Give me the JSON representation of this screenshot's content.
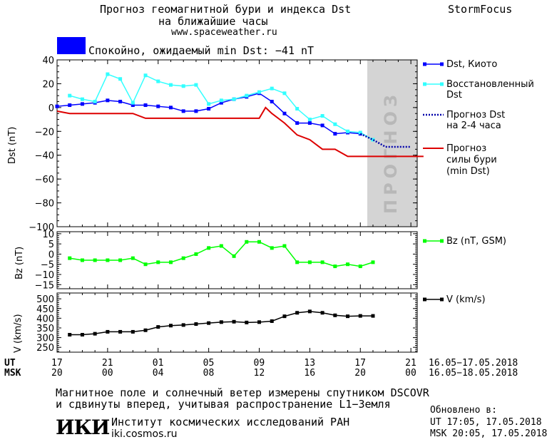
{
  "header": {
    "title_line1": "Прогноз геомагнитной бури и индекса Dst",
    "title_line2": "на ближайшие часы",
    "url": "www.spaceweather.ru",
    "brand": "StormFocus",
    "status_text": "Спокойно, ожидаемый min Dst: −41 nT",
    "status_color": "#0000ff"
  },
  "chart_data": [
    {
      "type": "line",
      "ylabel": "Dst (nT)",
      "ylim": [
        -100,
        40
      ],
      "yticks": [
        "40",
        "20",
        "0",
        "−20",
        "−40",
        "−60",
        "−80",
        "−100"
      ],
      "forecast_label": "ПРОГНОЗ",
      "series": [
        {
          "name": "Dst, Киото",
          "color": "#0000ff",
          "x": [
            17,
            18,
            19,
            20,
            21,
            22,
            23,
            24,
            25,
            26,
            27,
            28,
            29,
            30,
            31,
            32,
            33,
            34,
            35,
            36,
            37,
            38,
            39,
            40,
            41
          ],
          "y": [
            1,
            2,
            3,
            4,
            6,
            5,
            2,
            2,
            1,
            0,
            -3,
            -3,
            -1,
            4,
            7,
            9,
            12,
            5,
            -5,
            -13,
            -13,
            -15,
            -22,
            -21,
            -22
          ]
        },
        {
          "name": "Восстановленный Dst",
          "color": "#33ffff",
          "x": [
            18,
            19,
            20,
            21,
            22,
            23,
            24,
            25,
            26,
            27,
            28,
            29,
            30,
            31,
            32,
            33,
            34,
            35,
            36,
            37,
            38,
            39,
            40,
            41,
            42
          ],
          "y": [
            10,
            7,
            5,
            28,
            24,
            4,
            27,
            22,
            19,
            18,
            19,
            3,
            6,
            7,
            10,
            13,
            16,
            12,
            -1,
            -10,
            -7,
            -14,
            -20,
            -21,
            -27
          ]
        },
        {
          "name": "Прогноз Dst на 2-4 часа",
          "color": "#0000aa",
          "x": [
            41,
            42,
            43,
            44,
            45
          ],
          "y": [
            -22,
            -27,
            -33,
            -33,
            -33
          ]
        },
        {
          "name": "Прогноз силы бури (min Dst)",
          "color": "#dd0000",
          "x": [
            17,
            18,
            19,
            20,
            21,
            22,
            23,
            24,
            25,
            26,
            27,
            28,
            29,
            30,
            31,
            32,
            33,
            33.5,
            34,
            35,
            36,
            37,
            38,
            39,
            40,
            41,
            42,
            43,
            44,
            45,
            46
          ],
          "y": [
            -3,
            -5,
            -5,
            -5,
            -5,
            -5,
            -5,
            -9,
            -9,
            -9,
            -9,
            -9,
            -9,
            -9,
            -9,
            -9,
            -9,
            0,
            -5,
            -13,
            -23,
            -27,
            -35,
            -35,
            -41,
            -41,
            -41,
            -41,
            -41,
            -41,
            -41
          ]
        }
      ]
    },
    {
      "type": "line",
      "ylabel": "Bz (nT)",
      "ylim": [
        -17,
        11
      ],
      "yticks": [
        "10",
        "5",
        "0",
        "−5",
        "−10",
        "−15"
      ],
      "series": [
        {
          "name": "Bz (nT, GSM)",
          "color": "#00ff00",
          "x": [
            18,
            19,
            20,
            21,
            22,
            23,
            24,
            25,
            26,
            27,
            28,
            29,
            30,
            31,
            32,
            33,
            34,
            35,
            36,
            37,
            38,
            39,
            40,
            41,
            42
          ],
          "y": [
            -2,
            -3,
            -3,
            -3,
            -3,
            -2,
            -5,
            -4,
            -4,
            -2,
            0,
            3,
            4,
            -1,
            6,
            6,
            3,
            4,
            -4,
            -4,
            -4,
            -6,
            -5,
            -6,
            -4
          ]
        }
      ]
    },
    {
      "type": "line",
      "ylabel": "V (km/s)",
      "ylim": [
        225,
        530
      ],
      "yticks": [
        "500",
        "450",
        "400",
        "350",
        "300",
        "250"
      ],
      "series": [
        {
          "name": "V (km/s)",
          "color": "#000000",
          "x": [
            18,
            19,
            20,
            21,
            22,
            23,
            24,
            25,
            26,
            27,
            28,
            29,
            30,
            31,
            32,
            33,
            34,
            35,
            36,
            37,
            38,
            39,
            40,
            41,
            42
          ],
          "y": [
            315,
            315,
            320,
            330,
            330,
            330,
            338,
            355,
            362,
            365,
            370,
            375,
            380,
            382,
            378,
            380,
            385,
            410,
            428,
            435,
            428,
            415,
            410,
            412,
            412
          ]
        }
      ]
    }
  ],
  "xaxis": {
    "ut_label": "UT",
    "msk_label": "MSK",
    "ut_ticks": [
      "17",
      "21",
      "01",
      "05",
      "09",
      "13",
      "17",
      "21"
    ],
    "msk_ticks": [
      "20",
      "00",
      "04",
      "08",
      "12",
      "16",
      "20",
      "00"
    ],
    "ut_range": "16.05−17.05.2018",
    "msk_range": "16.05−18.05.2018"
  },
  "legend": {
    "dst_kyoto": "Dst, Киото",
    "restored_1": "Восстановленный",
    "restored_2": "Dst",
    "forecast_1": "Прогноз Dst",
    "forecast_2": "на 2-4 часа",
    "storm_1": "Прогноз",
    "storm_2": "силы бури",
    "storm_3": "(min Dst)",
    "bz": "Bz (nT, GSM)",
    "v": "V (km/s)"
  },
  "footer": {
    "note_line1": "Магнитное поле и солнечный ветер измерены спутником DSCOVR",
    "note_line2": "и сдвинуты вперед, учитывая распространение L1−Земля",
    "logo_text": "ИКИ",
    "institute": "Институт космических исследований РАН",
    "site": "iki.cosmos.ru",
    "updated_label": "Обновлено в:",
    "updated_ut": "UT  17:05, 17.05.2018",
    "updated_msk": "MSK 20:05, 17.05.2018"
  }
}
